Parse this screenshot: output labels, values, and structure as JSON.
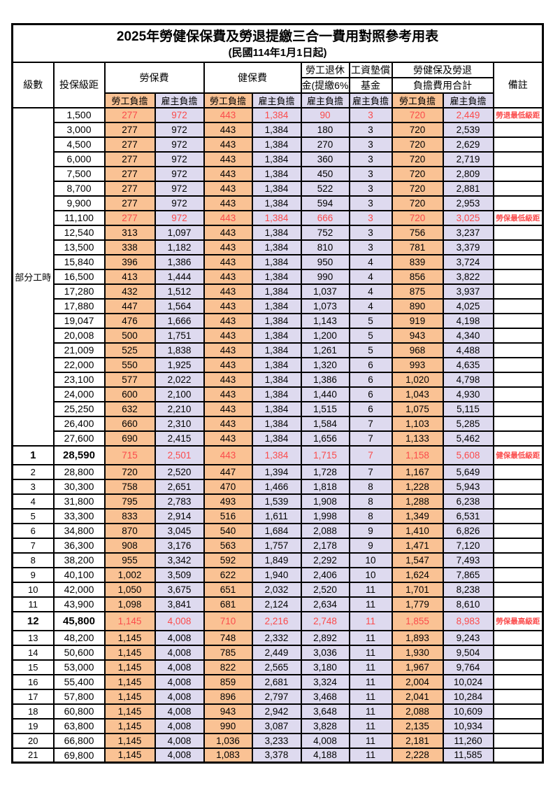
{
  "title": "2025年勞健保保費及勞退提繳三合一費用對照參考用表",
  "subtitle": "(民國114年1月1日起)",
  "colors": {
    "employee_bg": "#FAC294",
    "employer_bg": "#DEDAEF",
    "highlight_text": "#FB4B4B"
  },
  "header": {
    "level": "級數",
    "salary": "投保級距",
    "labor_insurance": "勞保費",
    "health_insurance": "健保費",
    "pension_line1": "勞工退休",
    "pension_line2": "金(提繳6%)",
    "wage_fund_line1": "工資墊償",
    "wage_fund_line2": "基金",
    "total_line1": "勞健保及勞退",
    "total_line2": "負擔費用合計",
    "remark": "備註",
    "employee": "勞工負擔",
    "employer": "雇主負擔"
  },
  "part_time": {
    "label": "部分工時",
    "span": 23
  },
  "value_column_names": [
    "labor-insurance-employee-cell",
    "labor-insurance-employer-cell",
    "health-insurance-employee-cell",
    "health-insurance-employer-cell",
    "pension-employer-cell",
    "wage-fund-employer-cell",
    "total-employee-cell",
    "total-employer-cell"
  ],
  "rows": [
    {
      "level": "",
      "salary": "1,500",
      "values": [
        "277",
        "972",
        "443",
        "1,384",
        "90",
        "3",
        "720",
        "2,449"
      ],
      "remark": "勞退最低級距",
      "highlight": true,
      "emphasis": false
    },
    {
      "level": "",
      "salary": "3,000",
      "values": [
        "277",
        "972",
        "443",
        "1,384",
        "180",
        "3",
        "720",
        "2,539"
      ],
      "remark": "",
      "highlight": false,
      "emphasis": false
    },
    {
      "level": "",
      "salary": "4,500",
      "values": [
        "277",
        "972",
        "443",
        "1,384",
        "270",
        "3",
        "720",
        "2,629"
      ],
      "remark": "",
      "highlight": false,
      "emphasis": false
    },
    {
      "level": "",
      "salary": "6,000",
      "values": [
        "277",
        "972",
        "443",
        "1,384",
        "360",
        "3",
        "720",
        "2,719"
      ],
      "remark": "",
      "highlight": false,
      "emphasis": false
    },
    {
      "level": "",
      "salary": "7,500",
      "values": [
        "277",
        "972",
        "443",
        "1,384",
        "450",
        "3",
        "720",
        "2,809"
      ],
      "remark": "",
      "highlight": false,
      "emphasis": false
    },
    {
      "level": "",
      "salary": "8,700",
      "values": [
        "277",
        "972",
        "443",
        "1,384",
        "522",
        "3",
        "720",
        "2,881"
      ],
      "remark": "",
      "highlight": false,
      "emphasis": false
    },
    {
      "level": "",
      "salary": "9,900",
      "values": [
        "277",
        "972",
        "443",
        "1,384",
        "594",
        "3",
        "720",
        "2,953"
      ],
      "remark": "",
      "highlight": false,
      "emphasis": false
    },
    {
      "level": "",
      "salary": "11,100",
      "values": [
        "277",
        "972",
        "443",
        "1,384",
        "666",
        "3",
        "720",
        "3,025"
      ],
      "remark": "勞保最低級距",
      "highlight": true,
      "emphasis": false
    },
    {
      "level": "",
      "salary": "12,540",
      "values": [
        "313",
        "1,097",
        "443",
        "1,384",
        "752",
        "3",
        "756",
        "3,237"
      ],
      "remark": "",
      "highlight": false,
      "emphasis": false
    },
    {
      "level": "",
      "salary": "13,500",
      "values": [
        "338",
        "1,182",
        "443",
        "1,384",
        "810",
        "3",
        "781",
        "3,379"
      ],
      "remark": "",
      "highlight": false,
      "emphasis": false
    },
    {
      "level": "",
      "salary": "15,840",
      "values": [
        "396",
        "1,386",
        "443",
        "1,384",
        "950",
        "4",
        "839",
        "3,724"
      ],
      "remark": "",
      "highlight": false,
      "emphasis": false
    },
    {
      "level": "",
      "salary": "16,500",
      "values": [
        "413",
        "1,444",
        "443",
        "1,384",
        "990",
        "4",
        "856",
        "3,822"
      ],
      "remark": "",
      "highlight": false,
      "emphasis": false
    },
    {
      "level": "",
      "salary": "17,280",
      "values": [
        "432",
        "1,512",
        "443",
        "1,384",
        "1,037",
        "4",
        "875",
        "3,937"
      ],
      "remark": "",
      "highlight": false,
      "emphasis": false
    },
    {
      "level": "",
      "salary": "17,880",
      "values": [
        "447",
        "1,564",
        "443",
        "1,384",
        "1,073",
        "4",
        "890",
        "4,025"
      ],
      "remark": "",
      "highlight": false,
      "emphasis": false
    },
    {
      "level": "",
      "salary": "19,047",
      "values": [
        "476",
        "1,666",
        "443",
        "1,384",
        "1,143",
        "5",
        "919",
        "4,198"
      ],
      "remark": "",
      "highlight": false,
      "emphasis": false
    },
    {
      "level": "",
      "salary": "20,008",
      "values": [
        "500",
        "1,751",
        "443",
        "1,384",
        "1,200",
        "5",
        "943",
        "4,340"
      ],
      "remark": "",
      "highlight": false,
      "emphasis": false
    },
    {
      "level": "",
      "salary": "21,009",
      "values": [
        "525",
        "1,838",
        "443",
        "1,384",
        "1,261",
        "5",
        "968",
        "4,488"
      ],
      "remark": "",
      "highlight": false,
      "emphasis": false
    },
    {
      "level": "",
      "salary": "22,000",
      "values": [
        "550",
        "1,925",
        "443",
        "1,384",
        "1,320",
        "6",
        "993",
        "4,635"
      ],
      "remark": "",
      "highlight": false,
      "emphasis": false
    },
    {
      "level": "",
      "salary": "23,100",
      "values": [
        "577",
        "2,022",
        "443",
        "1,384",
        "1,386",
        "6",
        "1,020",
        "4,798"
      ],
      "remark": "",
      "highlight": false,
      "emphasis": false
    },
    {
      "level": "",
      "salary": "24,000",
      "values": [
        "600",
        "2,100",
        "443",
        "1,384",
        "1,440",
        "6",
        "1,043",
        "4,930"
      ],
      "remark": "",
      "highlight": false,
      "emphasis": false
    },
    {
      "level": "",
      "salary": "25,250",
      "values": [
        "632",
        "2,210",
        "443",
        "1,384",
        "1,515",
        "6",
        "1,075",
        "5,115"
      ],
      "remark": "",
      "highlight": false,
      "emphasis": false
    },
    {
      "level": "",
      "salary": "26,400",
      "values": [
        "660",
        "2,310",
        "443",
        "1,384",
        "1,584",
        "7",
        "1,103",
        "5,285"
      ],
      "remark": "",
      "highlight": false,
      "emphasis": false
    },
    {
      "level": "",
      "salary": "27,600",
      "values": [
        "690",
        "2,415",
        "443",
        "1,384",
        "1,656",
        "7",
        "1,133",
        "5,462"
      ],
      "remark": "",
      "highlight": false,
      "emphasis": false
    },
    {
      "level": "1",
      "salary": "28,590",
      "values": [
        "715",
        "2,501",
        "443",
        "1,384",
        "1,715",
        "7",
        "1,158",
        "5,608"
      ],
      "remark": "健保最低級距",
      "highlight": true,
      "emphasis": true
    },
    {
      "level": "2",
      "salary": "28,800",
      "values": [
        "720",
        "2,520",
        "447",
        "1,394",
        "1,728",
        "7",
        "1,167",
        "5,649"
      ],
      "remark": "",
      "highlight": false,
      "emphasis": false
    },
    {
      "level": "3",
      "salary": "30,300",
      "values": [
        "758",
        "2,651",
        "470",
        "1,466",
        "1,818",
        "8",
        "1,228",
        "5,943"
      ],
      "remark": "",
      "highlight": false,
      "emphasis": false
    },
    {
      "level": "4",
      "salary": "31,800",
      "values": [
        "795",
        "2,783",
        "493",
        "1,539",
        "1,908",
        "8",
        "1,288",
        "6,238"
      ],
      "remark": "",
      "highlight": false,
      "emphasis": false
    },
    {
      "level": "5",
      "salary": "33,300",
      "values": [
        "833",
        "2,914",
        "516",
        "1,611",
        "1,998",
        "8",
        "1,349",
        "6,531"
      ],
      "remark": "",
      "highlight": false,
      "emphasis": false
    },
    {
      "level": "6",
      "salary": "34,800",
      "values": [
        "870",
        "3,045",
        "540",
        "1,684",
        "2,088",
        "9",
        "1,410",
        "6,826"
      ],
      "remark": "",
      "highlight": false,
      "emphasis": false
    },
    {
      "level": "7",
      "salary": "36,300",
      "values": [
        "908",
        "3,176",
        "563",
        "1,757",
        "2,178",
        "9",
        "1,471",
        "7,120"
      ],
      "remark": "",
      "highlight": false,
      "emphasis": false
    },
    {
      "level": "8",
      "salary": "38,200",
      "values": [
        "955",
        "3,342",
        "592",
        "1,849",
        "2,292",
        "10",
        "1,547",
        "7,493"
      ],
      "remark": "",
      "highlight": false,
      "emphasis": false
    },
    {
      "level": "9",
      "salary": "40,100",
      "values": [
        "1,002",
        "3,509",
        "622",
        "1,940",
        "2,406",
        "10",
        "1,624",
        "7,865"
      ],
      "remark": "",
      "highlight": false,
      "emphasis": false
    },
    {
      "level": "10",
      "salary": "42,000",
      "values": [
        "1,050",
        "3,675",
        "651",
        "2,032",
        "2,520",
        "11",
        "1,701",
        "8,238"
      ],
      "remark": "",
      "highlight": false,
      "emphasis": false
    },
    {
      "level": "11",
      "salary": "43,900",
      "values": [
        "1,098",
        "3,841",
        "681",
        "2,124",
        "2,634",
        "11",
        "1,779",
        "8,610"
      ],
      "remark": "",
      "highlight": false,
      "emphasis": false
    },
    {
      "level": "12",
      "salary": "45,800",
      "values": [
        "1,145",
        "4,008",
        "710",
        "2,216",
        "2,748",
        "11",
        "1,855",
        "8,983"
      ],
      "remark": "勞保最高級距",
      "highlight": true,
      "emphasis": true
    },
    {
      "level": "13",
      "salary": "48,200",
      "values": [
        "1,145",
        "4,008",
        "748",
        "2,332",
        "2,892",
        "11",
        "1,893",
        "9,243"
      ],
      "remark": "",
      "highlight": false,
      "emphasis": false
    },
    {
      "level": "14",
      "salary": "50,600",
      "values": [
        "1,145",
        "4,008",
        "785",
        "2,449",
        "3,036",
        "11",
        "1,930",
        "9,504"
      ],
      "remark": "",
      "highlight": false,
      "emphasis": false
    },
    {
      "level": "15",
      "salary": "53,000",
      "values": [
        "1,145",
        "4,008",
        "822",
        "2,565",
        "3,180",
        "11",
        "1,967",
        "9,764"
      ],
      "remark": "",
      "highlight": false,
      "emphasis": false
    },
    {
      "level": "16",
      "salary": "55,400",
      "values": [
        "1,145",
        "4,008",
        "859",
        "2,681",
        "3,324",
        "11",
        "2,004",
        "10,024"
      ],
      "remark": "",
      "highlight": false,
      "emphasis": false
    },
    {
      "level": "17",
      "salary": "57,800",
      "values": [
        "1,145",
        "4,008",
        "896",
        "2,797",
        "3,468",
        "11",
        "2,041",
        "10,284"
      ],
      "remark": "",
      "highlight": false,
      "emphasis": false
    },
    {
      "level": "18",
      "salary": "60,800",
      "values": [
        "1,145",
        "4,008",
        "943",
        "2,942",
        "3,648",
        "11",
        "2,088",
        "10,609"
      ],
      "remark": "",
      "highlight": false,
      "emphasis": false
    },
    {
      "level": "19",
      "salary": "63,800",
      "values": [
        "1,145",
        "4,008",
        "990",
        "3,087",
        "3,828",
        "11",
        "2,135",
        "10,934"
      ],
      "remark": "",
      "highlight": false,
      "emphasis": false
    },
    {
      "level": "20",
      "salary": "66,800",
      "values": [
        "1,145",
        "4,008",
        "1,036",
        "3,233",
        "4,008",
        "11",
        "2,181",
        "11,260"
      ],
      "remark": "",
      "highlight": false,
      "emphasis": false
    },
    {
      "level": "21",
      "salary": "69,800",
      "values": [
        "1,145",
        "4,008",
        "1,083",
        "3,378",
        "4,188",
        "11",
        "2,228",
        "11,585"
      ],
      "remark": "",
      "highlight": false,
      "emphasis": false
    }
  ]
}
